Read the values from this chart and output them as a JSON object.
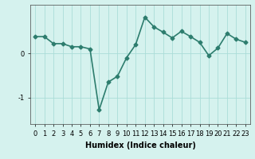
{
  "x": [
    0,
    1,
    2,
    3,
    4,
    5,
    6,
    7,
    8,
    9,
    10,
    11,
    12,
    13,
    14,
    15,
    16,
    17,
    18,
    19,
    20,
    21,
    22,
    23
  ],
  "y": [
    0.38,
    0.38,
    0.22,
    0.22,
    0.15,
    0.15,
    0.1,
    -1.28,
    -0.65,
    -0.52,
    -0.1,
    0.2,
    0.82,
    0.6,
    0.48,
    0.35,
    0.5,
    0.38,
    0.25,
    -0.05,
    0.12,
    0.45,
    0.32,
    0.25
  ],
  "line_color": "#2d7d6e",
  "marker": "D",
  "marker_size": 2.5,
  "background_color": "#d5f2ee",
  "grid_color": "#aaddd8",
  "xlabel": "Humidex (Indice chaleur)",
  "ylim": [
    -1.6,
    1.1
  ],
  "xlim": [
    -0.5,
    23.5
  ],
  "yticks": [
    -1,
    0
  ],
  "xticks": [
    0,
    1,
    2,
    3,
    4,
    5,
    6,
    7,
    8,
    9,
    10,
    11,
    12,
    13,
    14,
    15,
    16,
    17,
    18,
    19,
    20,
    21,
    22,
    23
  ],
  "xlabel_fontsize": 7,
  "tick_fontsize": 6,
  "line_width": 1.2
}
